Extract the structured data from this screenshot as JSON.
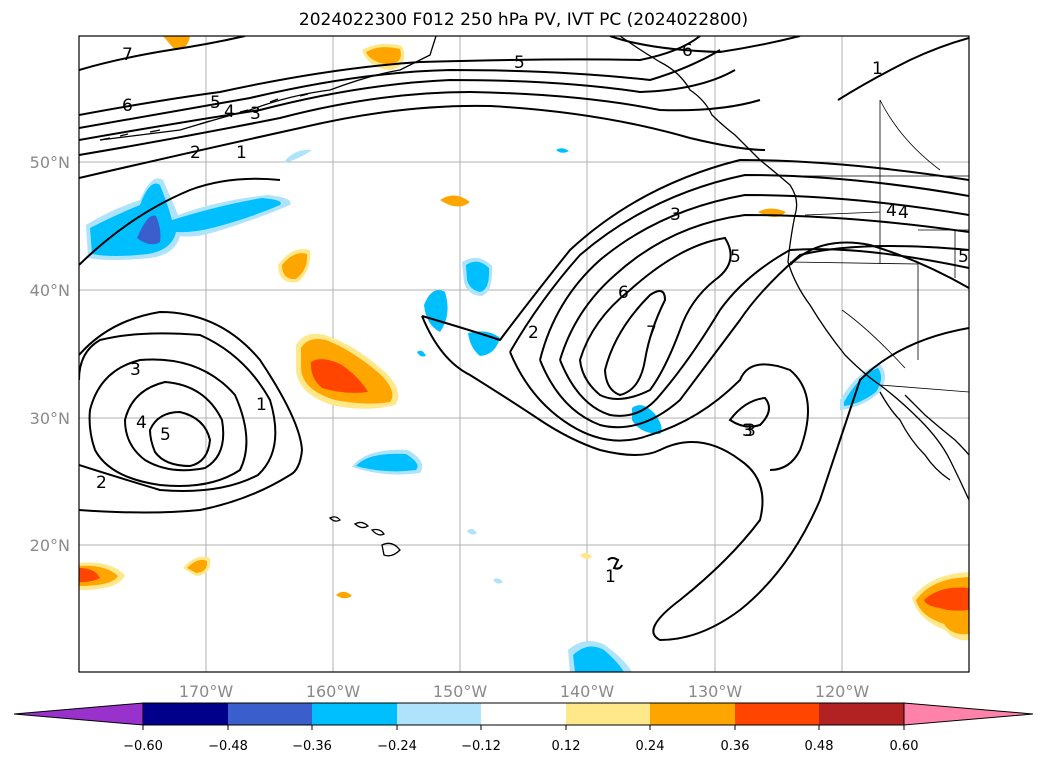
{
  "title": "2024022300 F012 250 hPa PV, IVT PC (2024022800)",
  "map": {
    "lat_ticks": [
      {
        "value": 50,
        "label": "50°N"
      },
      {
        "value": 40,
        "label": "40°N"
      },
      {
        "value": 30,
        "label": "30°N"
      },
      {
        "value": 20,
        "label": "20°N"
      }
    ],
    "lon_ticks": [
      {
        "value": -170,
        "label": "170°W"
      },
      {
        "value": -160,
        "label": "160°W"
      },
      {
        "value": -150,
        "label": "150°W"
      },
      {
        "value": -140,
        "label": "140°W"
      },
      {
        "value": -130,
        "label": "130°W"
      },
      {
        "value": -120,
        "label": "120°W"
      }
    ],
    "contour_labels": [
      "7",
      "6",
      "5",
      "4",
      "3",
      "2",
      "1",
      "5",
      "6",
      "1",
      "3",
      "4",
      "5",
      "1",
      "2",
      "3",
      "4",
      "5",
      "2",
      "3",
      "5",
      "6",
      "7",
      "3",
      "1",
      "4"
    ],
    "shading_colors": {
      "neg_strong": "#3a5fcd",
      "neg_mid": "#00bfff",
      "neg_weak": "#aee3fb",
      "pos_weak": "#ffe88a",
      "pos_mid": "#ffa500",
      "pos_strong": "#ff4500",
      "pos_extreme": "#b22222"
    }
  },
  "colorbar": {
    "colors": [
      "#9932cc",
      "#00008b",
      "#3a5fcd",
      "#00bfff",
      "#aee3fb",
      "#ffffff",
      "#ffe88a",
      "#ffa500",
      "#ff4500",
      "#b22222",
      "#ff82ab"
    ],
    "tick_labels": [
      "−0.60",
      "−0.48",
      "−0.36",
      "−0.24",
      "−0.12",
      "0.12",
      "0.24",
      "0.36",
      "0.48",
      "0.60"
    ]
  }
}
